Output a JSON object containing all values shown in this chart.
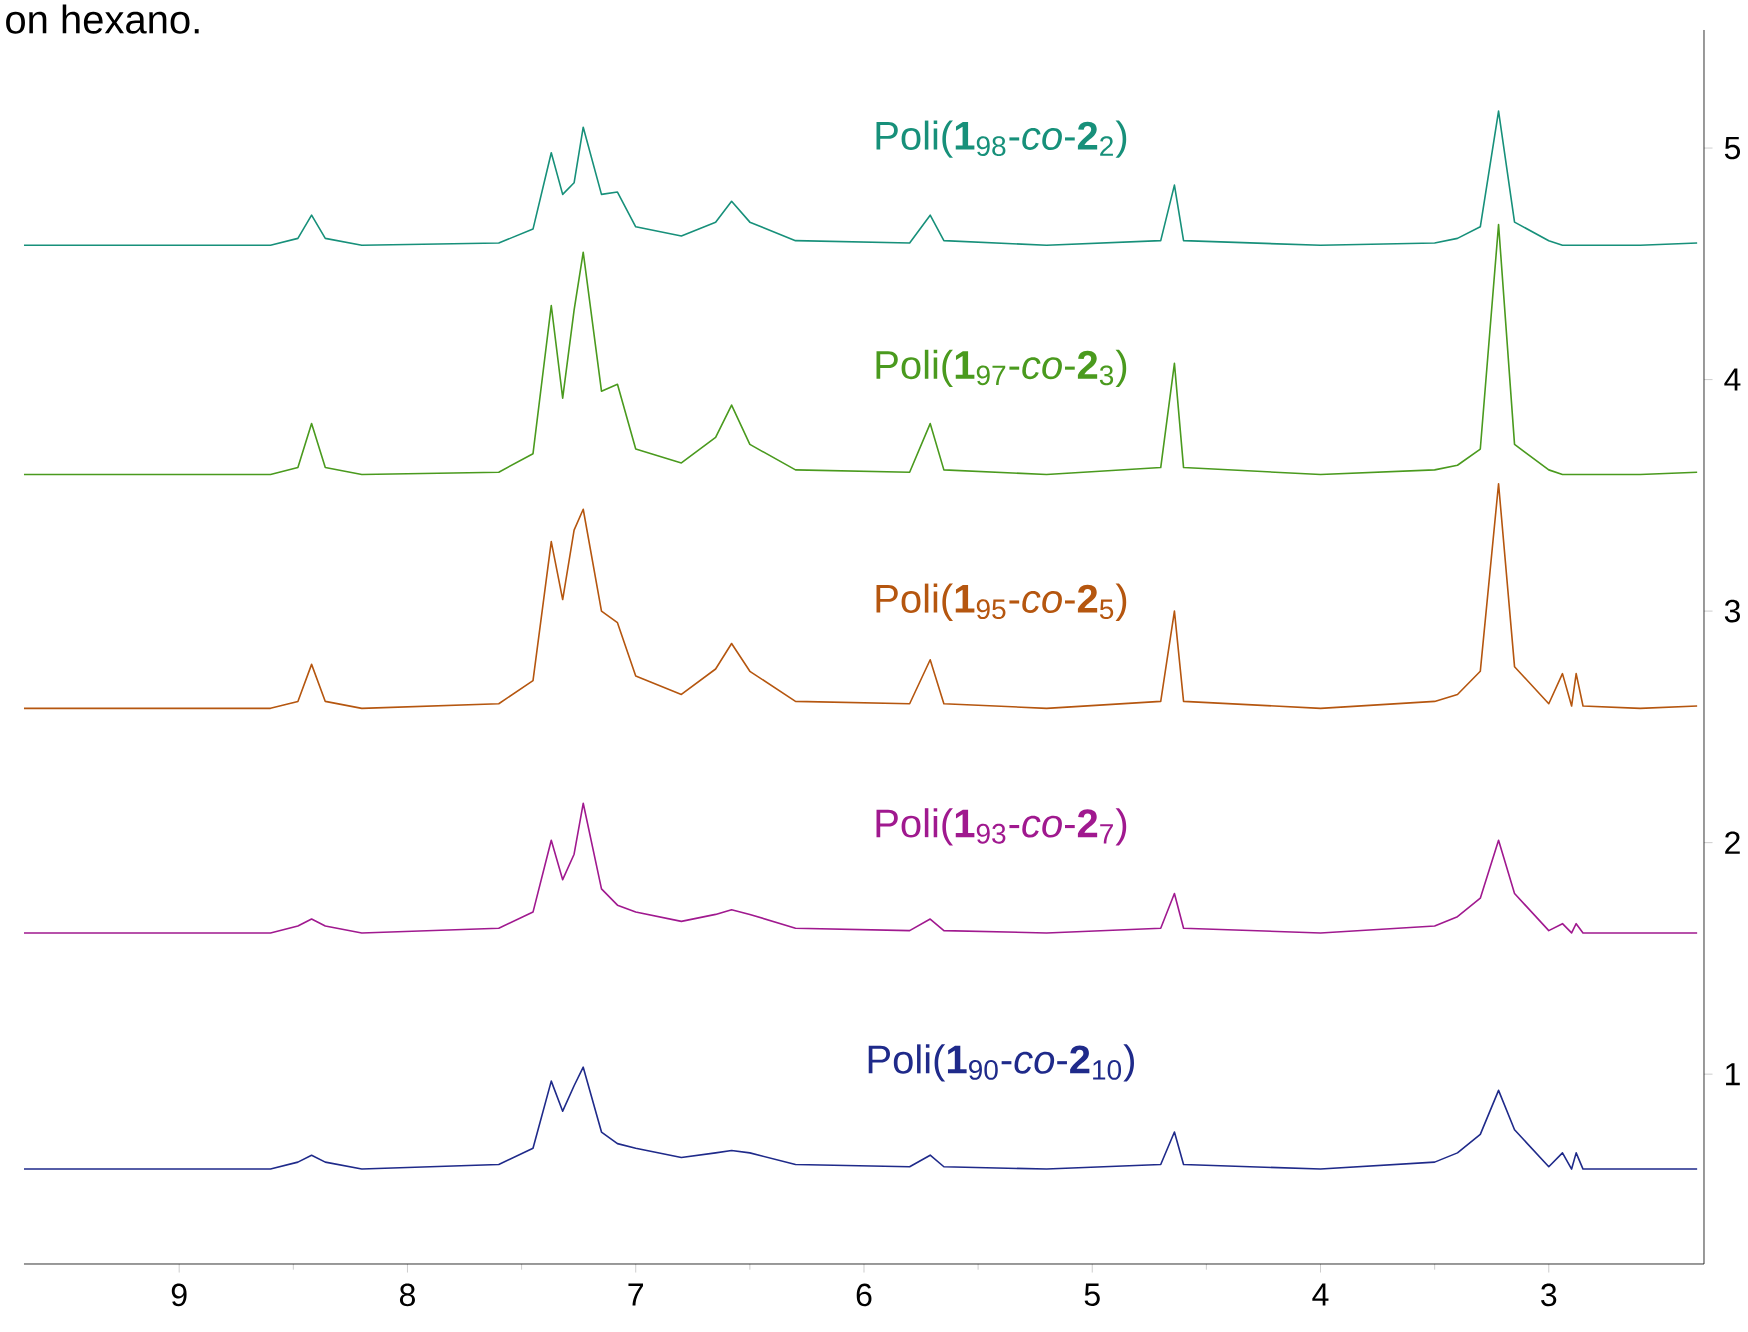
{
  "chart_data": {
    "type": "line",
    "annotations": [
      "on hexano."
    ],
    "x": [
      9.68,
      8.6,
      8.48,
      8.42,
      8.36,
      8.2,
      7.6,
      7.45,
      7.37,
      7.32,
      7.27,
      7.23,
      7.15,
      7.08,
      7.0,
      6.8,
      6.65,
      6.58,
      6.5,
      6.3,
      5.8,
      5.71,
      5.65,
      5.2,
      4.7,
      4.64,
      4.6,
      4.0,
      3.5,
      3.4,
      3.3,
      3.22,
      3.15,
      3.0,
      2.94,
      2.9,
      2.88,
      2.85,
      2.6,
      2.35
    ],
    "series": [
      {
        "name": "Poli(**1**$_{98}$-*co*-**2**$_{2}$)",
        "color": "#17907a",
        "values": [
          4.58,
          4.58,
          4.61,
          4.71,
          4.61,
          4.58,
          4.59,
          4.65,
          4.98,
          4.8,
          4.85,
          5.09,
          4.8,
          4.81,
          4.66,
          4.62,
          4.68,
          4.77,
          4.68,
          4.6,
          4.59,
          4.71,
          4.6,
          4.58,
          4.6,
          4.84,
          4.6,
          4.58,
          4.59,
          4.61,
          4.66,
          5.16,
          4.68,
          4.6,
          4.58,
          4.58,
          4.58,
          4.58,
          4.58,
          4.59
        ]
      },
      {
        "name": "Poli(**1**$_{97}$-*co*-**2**$_{3}$)",
        "color": "#4a9a1e",
        "values": [
          3.59,
          3.59,
          3.62,
          3.81,
          3.62,
          3.59,
          3.6,
          3.68,
          4.32,
          3.92,
          4.3,
          4.55,
          3.95,
          3.98,
          3.7,
          3.64,
          3.75,
          3.89,
          3.72,
          3.61,
          3.6,
          3.81,
          3.61,
          3.59,
          3.62,
          4.07,
          3.62,
          3.59,
          3.61,
          3.63,
          3.7,
          4.67,
          3.72,
          3.61,
          3.59,
          3.59,
          3.59,
          3.59,
          3.59,
          3.6
        ]
      },
      {
        "name": "Poli(**1**$_{95}$-*co*-**2**$_{5}$)",
        "color": "#b5560f",
        "values": [
          2.58,
          2.58,
          2.61,
          2.77,
          2.61,
          2.58,
          2.6,
          2.7,
          3.3,
          3.05,
          3.35,
          3.44,
          3.0,
          2.95,
          2.72,
          2.64,
          2.75,
          2.86,
          2.74,
          2.61,
          2.6,
          2.79,
          2.6,
          2.58,
          2.61,
          3.0,
          2.61,
          2.58,
          2.61,
          2.64,
          2.74,
          3.55,
          2.76,
          2.6,
          2.73,
          2.59,
          2.73,
          2.59,
          2.58,
          2.59
        ]
      },
      {
        "name": "Poli(**1**$_{93}$-*co*-**2**$_{7}$)",
        "color": "#a0198f",
        "values": [
          1.61,
          1.61,
          1.64,
          1.67,
          1.64,
          1.61,
          1.63,
          1.7,
          2.01,
          1.84,
          1.95,
          2.17,
          1.8,
          1.73,
          1.7,
          1.66,
          1.69,
          1.71,
          1.69,
          1.63,
          1.62,
          1.67,
          1.62,
          1.61,
          1.63,
          1.78,
          1.63,
          1.61,
          1.64,
          1.68,
          1.76,
          2.01,
          1.78,
          1.62,
          1.65,
          1.61,
          1.65,
          1.61,
          1.61,
          1.61
        ]
      },
      {
        "name": "Poli(**1**$_{90}$-*co*-**2**$_{10}$)",
        "color": "#1f2a8a",
        "values": [
          0.59,
          0.59,
          0.62,
          0.65,
          0.62,
          0.59,
          0.61,
          0.68,
          0.97,
          0.84,
          0.95,
          1.03,
          0.75,
          0.7,
          0.68,
          0.64,
          0.66,
          0.67,
          0.66,
          0.61,
          0.6,
          0.65,
          0.6,
          0.59,
          0.61,
          0.75,
          0.61,
          0.59,
          0.62,
          0.66,
          0.74,
          0.93,
          0.76,
          0.6,
          0.66,
          0.59,
          0.66,
          0.59,
          0.59,
          0.59
        ]
      }
    ],
    "xlim": [
      9.68,
      2.32
    ],
    "ylim": [
      0.18,
      5.51
    ],
    "xticks": [
      3,
      4,
      5,
      6,
      7,
      8,
      9
    ],
    "yticks": [
      1,
      2,
      3,
      4,
      5
    ],
    "grid": false,
    "marker": "none",
    "line_style": "solid"
  }
}
